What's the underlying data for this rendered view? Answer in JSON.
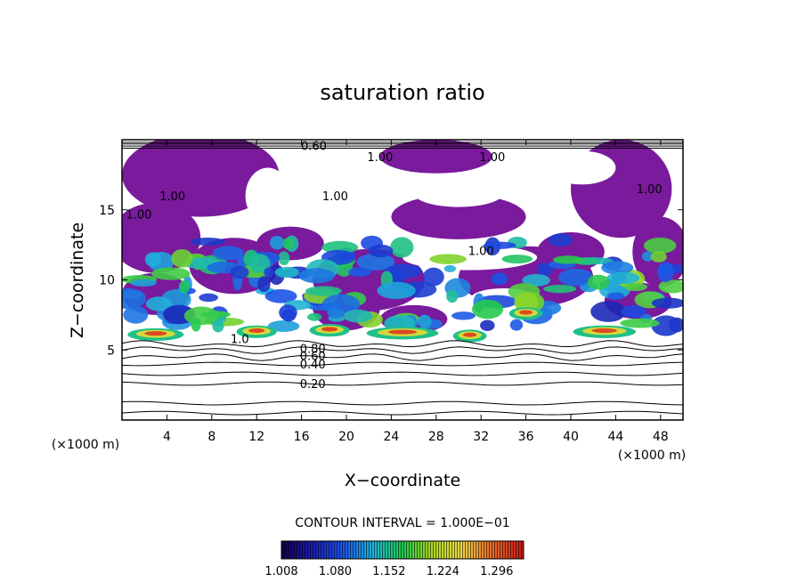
{
  "chart_data": {
    "type": "heatmap",
    "title": "saturation ratio",
    "xlabel": "X−coordinate",
    "ylabel": "Z−coordinate",
    "x_unit_label": "(×1000 m)",
    "z_unit_label": "(×1000 m)",
    "xlim": [
      0,
      50
    ],
    "ylim": [
      0,
      20
    ],
    "x_ticks": [
      4,
      8,
      12,
      16,
      20,
      24,
      28,
      32,
      36,
      40,
      44,
      48
    ],
    "y_ticks": [
      5,
      10,
      15
    ],
    "contour_interval_text": "CONTOUR INTERVAL = 1.000E−01",
    "contour_interval": 0.1,
    "colorbar": {
      "min": 1.008,
      "max": 1.332,
      "tick_labels": [
        "1.008",
        "1.080",
        "1.152",
        "1.224",
        "1.296"
      ],
      "tick_values": [
        1.008,
        1.08,
        1.152,
        1.224,
        1.296
      ]
    },
    "contour_labels": [
      {
        "text": "0.60",
        "x": 17.1,
        "z": 19.6
      },
      {
        "text": "1.00",
        "x": 23.0,
        "z": 18.8
      },
      {
        "text": "1.00",
        "x": 33.0,
        "z": 18.8
      },
      {
        "text": "1.00",
        "x": 4.5,
        "z": 16.0
      },
      {
        "text": "1.00",
        "x": 1.5,
        "z": 14.7
      },
      {
        "text": "1.00",
        "x": 19.0,
        "z": 16.0
      },
      {
        "text": "1.00",
        "x": 47.0,
        "z": 16.5
      },
      {
        "text": "1.00",
        "x": 32.0,
        "z": 12.1
      },
      {
        "text": "0.80",
        "x": 17.0,
        "z": 5.1
      },
      {
        "text": "0.60",
        "x": 17.0,
        "z": 4.6
      },
      {
        "text": "0.40",
        "x": 17.0,
        "z": 4.0
      },
      {
        "text": "0.20",
        "x": 17.0,
        "z": 2.6
      },
      {
        "text": "1.0",
        "x": 10.5,
        "z": 5.8
      }
    ],
    "contour_lines_z": [
      0.5,
      1.2,
      2.6,
      3.3,
      4.0,
      4.5,
      5.0,
      5.4
    ],
    "supersaturated_layer_z": [
      5.5,
      13.5
    ]
  }
}
